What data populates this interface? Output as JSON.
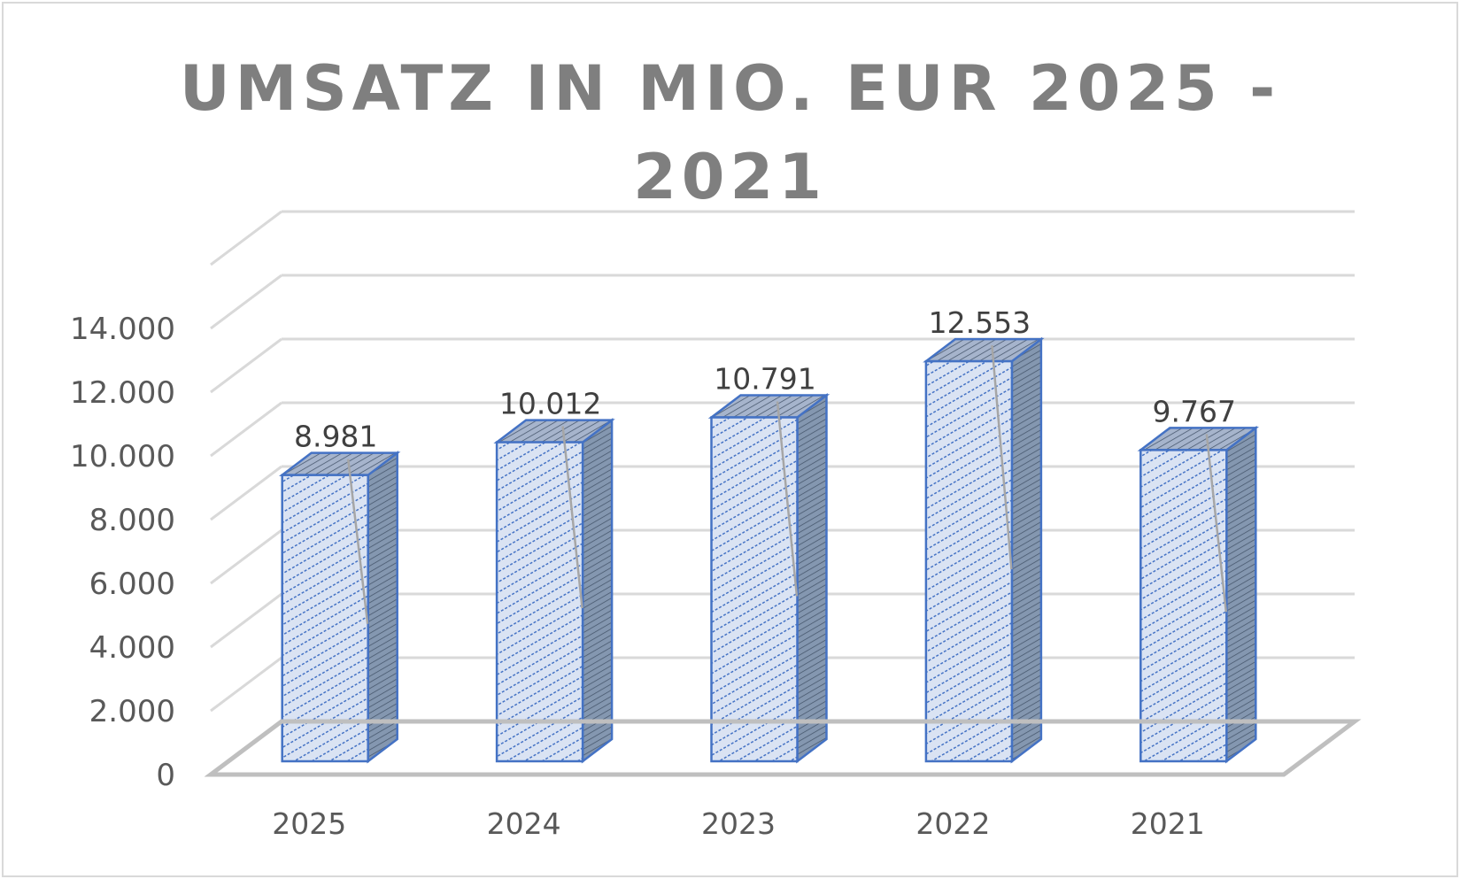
{
  "chart_data": {
    "type": "bar",
    "title_line1": "UMSATZ IN MIO. EUR 2025 -",
    "title_line2": "2021",
    "categories": [
      "2025",
      "2024",
      "2023",
      "2022",
      "2021"
    ],
    "series": [
      {
        "values": [
          8981,
          10012,
          10791,
          12553,
          9767
        ]
      }
    ],
    "data_labels": [
      "8.981",
      "10.012",
      "10.791",
      "12.553",
      "9.767"
    ],
    "y_ticks": [
      {
        "value": 0,
        "label": "0"
      },
      {
        "value": 2000,
        "label": "2.000"
      },
      {
        "value": 4000,
        "label": "4.000"
      },
      {
        "value": 6000,
        "label": "6.000"
      },
      {
        "value": 8000,
        "label": "8.000"
      },
      {
        "value": 10000,
        "label": "10.000"
      },
      {
        "value": 12000,
        "label": "12.000"
      },
      {
        "value": 14000,
        "label": "14.000"
      }
    ],
    "ylim": [
      0,
      16000
    ],
    "grid": true,
    "style": "3d",
    "legend": "none",
    "colors": {
      "bar_fill": "#dae3f3",
      "bar_hatch": "#4472c4",
      "bar_side": "#8497b0",
      "bar_edge": "#4472c4",
      "grid": "#d9d9d9",
      "floor": "#bfbfbf",
      "title": "#7f7f7f",
      "ticks": "#595959",
      "leader": "#a6a6a6"
    }
  }
}
